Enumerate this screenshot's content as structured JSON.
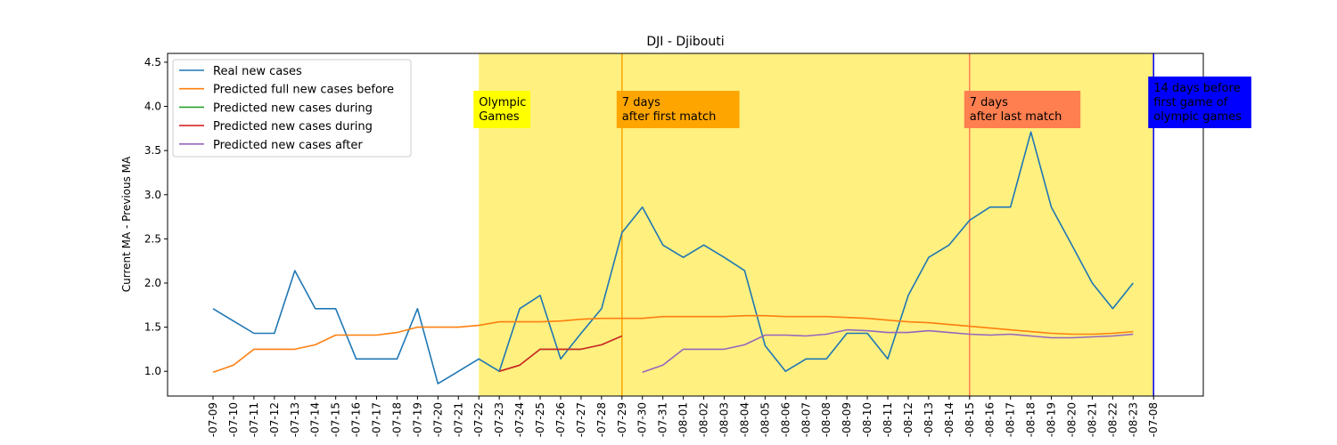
{
  "chart_data": {
    "type": "line",
    "title": "DJI - Djibouti",
    "xlabel": "",
    "ylabel": "Current MA - Previous MA",
    "ylim": [
      0.72,
      4.6
    ],
    "yticks": [
      1.0,
      1.5,
      2.0,
      2.5,
      3.0,
      3.5,
      4.0,
      4.5
    ],
    "grid": false,
    "legend_position": "top-left",
    "categories": [
      "2021-07-09",
      "2021-07-10",
      "2021-07-11",
      "2021-07-12",
      "2021-07-13",
      "2021-07-14",
      "2021-07-15",
      "2021-07-16",
      "2021-07-17",
      "2021-07-18",
      "2021-07-19",
      "2021-07-20",
      "2021-07-21",
      "2021-07-22",
      "2021-07-23",
      "2021-07-24",
      "2021-07-25",
      "2021-07-26",
      "2021-07-27",
      "2021-07-28",
      "2021-07-29",
      "2021-07-30",
      "2021-07-31",
      "2021-08-01",
      "2021-08-02",
      "2021-08-03",
      "2021-08-04",
      "2021-08-05",
      "2021-08-06",
      "2021-08-07",
      "2021-08-08",
      "2021-08-09",
      "2021-08-10",
      "2021-08-11",
      "2021-08-12",
      "2021-08-13",
      "2021-08-14",
      "2021-08-15",
      "2021-08-16",
      "2021-08-17",
      "2021-08-18",
      "2021-08-19",
      "2021-08-20",
      "2021-08-21",
      "2021-08-22",
      "2021-08-23",
      "2021-07-08"
    ],
    "tick_labels": [
      "-07-09",
      "-07-10",
      "-07-11",
      "-07-12",
      "-07-13",
      "-07-14",
      "-07-15",
      "-07-16",
      "-07-17",
      "-07-18",
      "-07-19",
      "-07-20",
      "-07-21",
      "-07-22",
      "-07-23",
      "-07-24",
      "-07-25",
      "-07-26",
      "-07-27",
      "-07-28",
      "-07-29",
      "-07-30",
      "-07-31",
      "-08-01",
      "-08-02",
      "-08-03",
      "-08-04",
      "-08-05",
      "-08-06",
      "-08-07",
      "-08-08",
      "-08-09",
      "-08-10",
      "-08-11",
      "-08-12",
      "-08-13",
      "-08-14",
      "-08-15",
      "-08-16",
      "-08-17",
      "-08-18",
      "-08-19",
      "-08-20",
      "-08-21",
      "-08-22",
      "-08-23",
      "-07-08"
    ],
    "series": [
      {
        "name": "Real new cases",
        "color": "#1f77b4",
        "values": [
          1.71,
          1.57,
          1.43,
          1.43,
          2.14,
          1.71,
          1.71,
          1.14,
          1.14,
          1.14,
          1.71,
          0.86,
          1.0,
          1.14,
          1.0,
          1.71,
          1.86,
          1.14,
          1.43,
          1.71,
          2.57,
          2.86,
          2.43,
          2.29,
          2.43,
          2.29,
          2.14,
          1.29,
          1.0,
          1.14,
          1.14,
          1.43,
          1.43,
          1.14,
          1.86,
          2.29,
          2.43,
          2.71,
          2.86,
          2.86,
          3.71,
          2.86,
          2.43,
          2.0,
          1.71,
          2.0,
          null
        ]
      },
      {
        "name": "Predicted full new cases before",
        "color": "#ff7f0e",
        "values": [
          0.99,
          1.07,
          1.25,
          1.25,
          1.25,
          1.3,
          1.41,
          1.41,
          1.41,
          1.44,
          1.5,
          1.5,
          1.5,
          1.52,
          1.56,
          1.56,
          1.56,
          1.57,
          1.59,
          1.6,
          1.6,
          1.6,
          1.62,
          1.62,
          1.62,
          1.62,
          1.63,
          1.63,
          1.62,
          1.62,
          1.62,
          1.61,
          1.6,
          1.58,
          1.56,
          1.55,
          1.53,
          1.51,
          1.49,
          1.47,
          1.45,
          1.43,
          1.42,
          1.42,
          1.43,
          1.45,
          null
        ]
      },
      {
        "name": "Predicted new cases during",
        "color": "#2ca02c",
        "values": [
          null,
          null,
          null,
          null,
          null,
          null,
          null,
          null,
          null,
          null,
          null,
          null,
          null,
          null,
          1.0,
          1.07,
          1.25,
          1.25,
          1.25,
          1.3,
          1.4,
          null,
          null,
          null,
          null,
          null,
          null,
          null,
          null,
          null,
          null,
          null,
          null,
          null,
          null,
          null,
          null,
          null,
          null,
          null,
          null,
          null,
          null,
          null,
          null,
          null,
          null
        ]
      },
      {
        "name": "Predicted new cases during",
        "color": "#d62728",
        "values": [
          null,
          null,
          null,
          null,
          null,
          null,
          null,
          null,
          null,
          null,
          null,
          null,
          null,
          null,
          1.0,
          1.07,
          1.25,
          1.25,
          1.25,
          1.3,
          1.4,
          null,
          null,
          null,
          null,
          null,
          null,
          null,
          null,
          null,
          null,
          null,
          null,
          null,
          null,
          null,
          null,
          null,
          null,
          null,
          null,
          null,
          null,
          null,
          null,
          null,
          null
        ]
      },
      {
        "name": "Predicted new cases after",
        "color": "#9467bd",
        "values": [
          null,
          null,
          null,
          null,
          null,
          null,
          null,
          null,
          null,
          null,
          null,
          null,
          null,
          null,
          null,
          null,
          null,
          null,
          null,
          null,
          null,
          0.99,
          1.07,
          1.25,
          1.25,
          1.25,
          1.3,
          1.41,
          1.41,
          1.4,
          1.42,
          1.47,
          1.46,
          1.44,
          1.44,
          1.46,
          1.44,
          1.42,
          1.41,
          1.42,
          1.4,
          1.38,
          1.38,
          1.39,
          1.4,
          1.42,
          null
        ]
      }
    ],
    "shaded_region": {
      "from": "2021-07-22",
      "to": "2021-07-08",
      "color": "#fff080"
    },
    "vlines": [
      {
        "at": "2021-07-29",
        "color": "#ffa500"
      },
      {
        "at": "2021-08-15",
        "color": "#ff7f50"
      },
      {
        "at": "2021-07-08",
        "color": "#0000ff"
      }
    ],
    "annotations": [
      {
        "lines": [
          "Olympic",
          "Games"
        ],
        "bg": "#ffff00",
        "text_color": "#000000",
        "at": "2021-07-22"
      },
      {
        "lines": [
          "7 days",
          "after first match"
        ],
        "bg": "#ffa500",
        "text_color": "#000000",
        "at": "2021-07-29"
      },
      {
        "lines": [
          "7 days",
          "after last match"
        ],
        "bg": "#ff7f50",
        "text_color": "#000000",
        "at": "2021-08-15"
      },
      {
        "lines": [
          "14 days before",
          "first game of",
          "olympic games"
        ],
        "bg": "#0000ff",
        "text_color": "#ffffff",
        "at": "2021-07-08"
      }
    ]
  }
}
